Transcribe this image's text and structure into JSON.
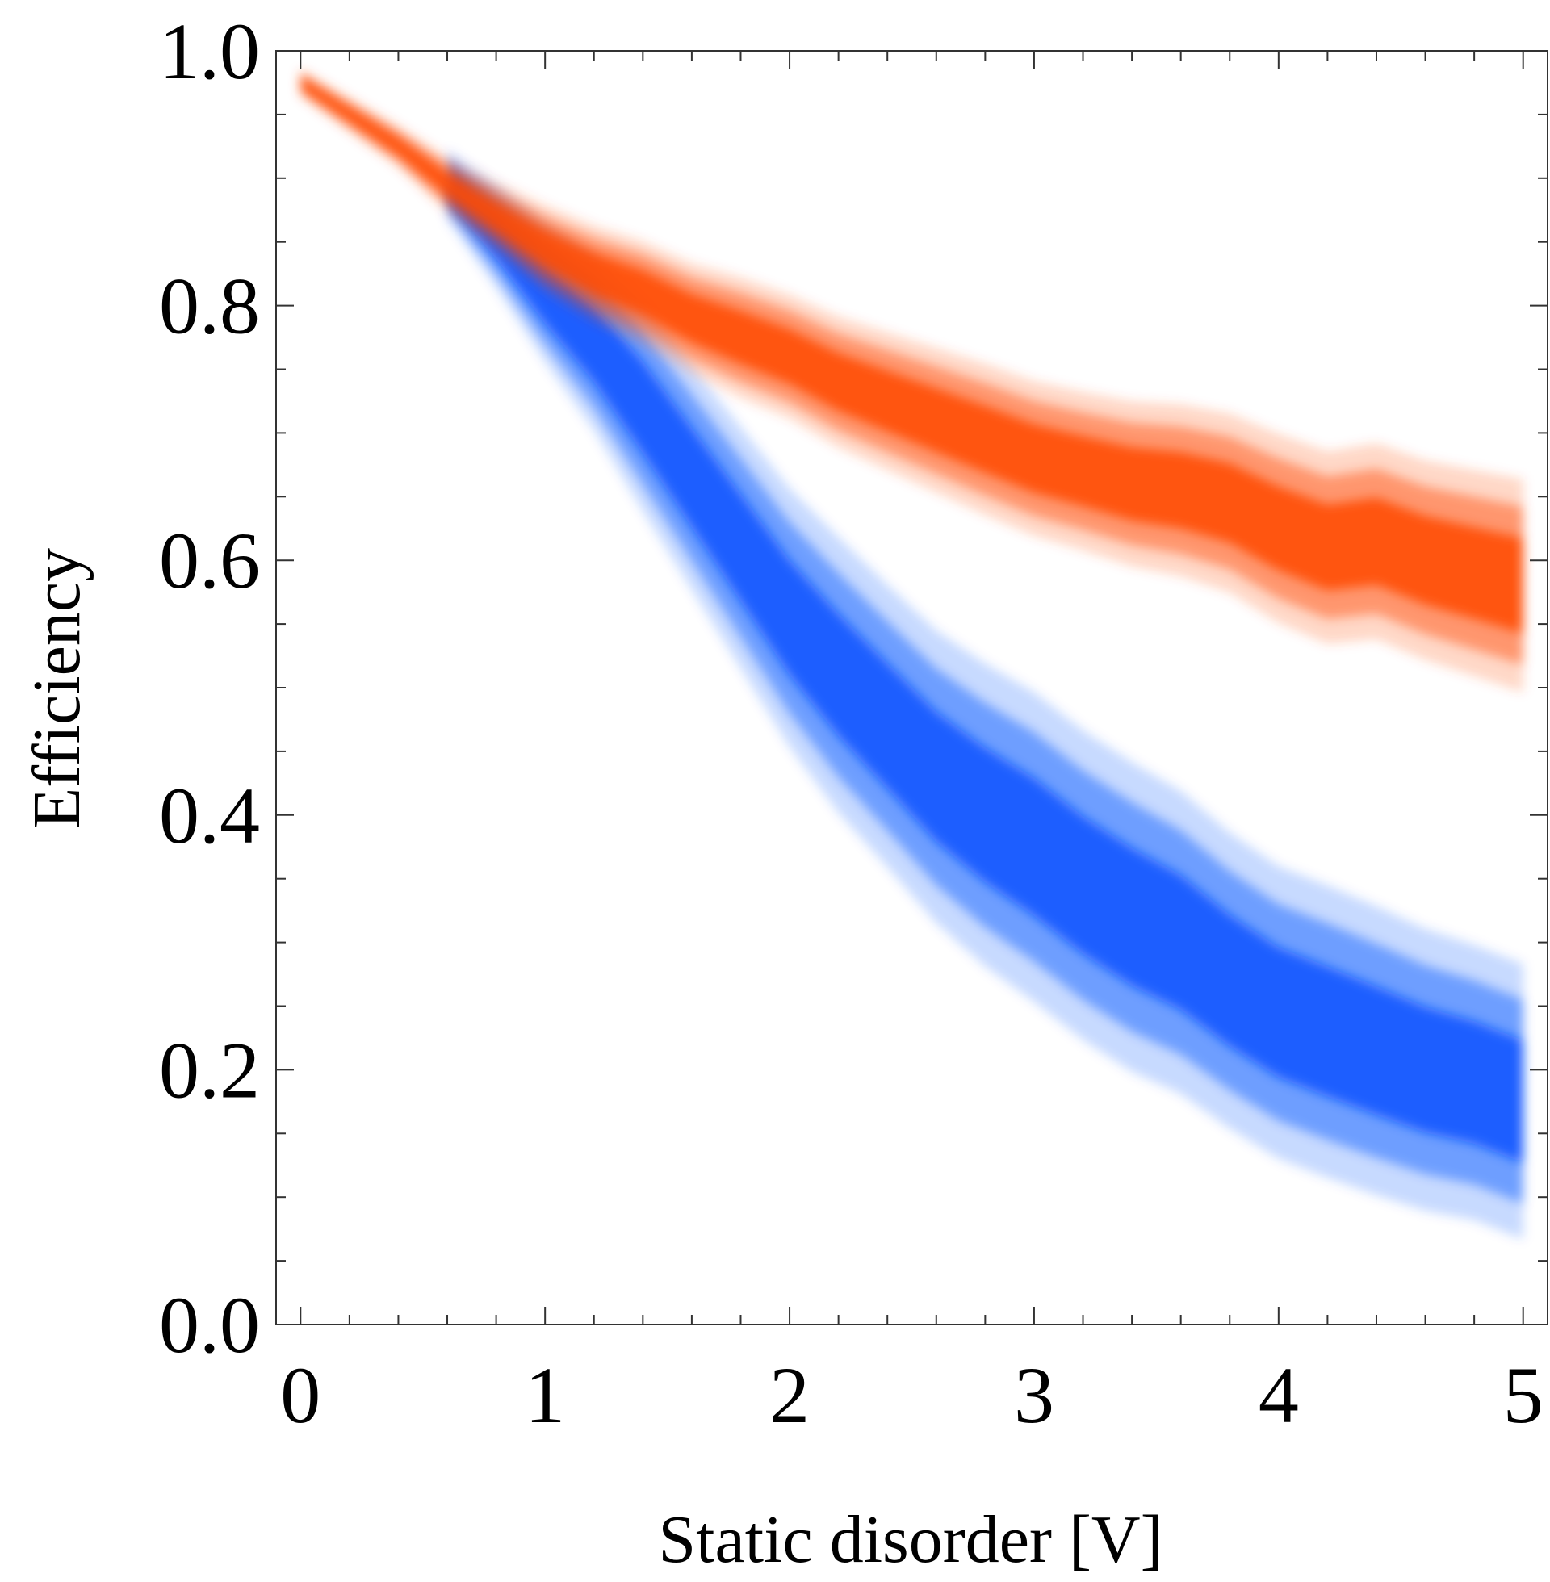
{
  "chart_data": {
    "type": "area",
    "title": "",
    "xlabel": "Static disorder [V]",
    "ylabel": "Efficiency",
    "xlim": [
      -0.1,
      5.1
    ],
    "ylim": [
      0.0,
      1.0
    ],
    "x_major_ticks": [
      0,
      1,
      2,
      3,
      4,
      5
    ],
    "x_tick_labels": [
      "0",
      "1",
      "2",
      "3",
      "4",
      "5"
    ],
    "x_minor_step": 0.2,
    "y_major_ticks": [
      0.0,
      0.2,
      0.4,
      0.6,
      0.8,
      1.0
    ],
    "y_tick_labels": [
      "0.0",
      "0.2",
      "0.4",
      "0.6",
      "0.8",
      "1.0"
    ],
    "y_minor_step": 0.05,
    "grid": false,
    "legend": "none",
    "series": [
      {
        "name": "orange",
        "color": "#ff4a00",
        "x": [
          0.0,
          0.2,
          0.4,
          0.6,
          0.8,
          1.0,
          1.2,
          1.4,
          1.6,
          1.8,
          2.0,
          2.2,
          2.4,
          2.6,
          2.8,
          3.0,
          3.2,
          3.4,
          3.6,
          3.8,
          4.0,
          4.2,
          4.4,
          4.6,
          4.8,
          5.0
        ],
        "center": [
          0.975,
          0.95,
          0.925,
          0.895,
          0.87,
          0.845,
          0.825,
          0.81,
          0.79,
          0.775,
          0.76,
          0.74,
          0.725,
          0.71,
          0.695,
          0.68,
          0.67,
          0.66,
          0.655,
          0.645,
          0.625,
          0.61,
          0.615,
          0.6,
          0.59,
          0.58
        ],
        "halfwidth": [
          0.008,
          0.01,
          0.012,
          0.016,
          0.02,
          0.025,
          0.028,
          0.03,
          0.032,
          0.035,
          0.036,
          0.038,
          0.04,
          0.042,
          0.044,
          0.045,
          0.046,
          0.048,
          0.05,
          0.052,
          0.055,
          0.056,
          0.057,
          0.058,
          0.06,
          0.062
        ]
      },
      {
        "name": "blue",
        "color": "#0a55ff",
        "x": [
          0.6,
          0.8,
          1.0,
          1.2,
          1.4,
          1.6,
          1.8,
          2.0,
          2.2,
          2.4,
          2.6,
          2.8,
          3.0,
          3.2,
          3.4,
          3.6,
          3.8,
          4.0,
          4.2,
          4.4,
          4.6,
          4.8,
          5.0
        ],
        "center": [
          0.895,
          0.855,
          0.81,
          0.77,
          0.72,
          0.665,
          0.61,
          0.555,
          0.51,
          0.47,
          0.43,
          0.4,
          0.375,
          0.345,
          0.32,
          0.3,
          0.27,
          0.245,
          0.23,
          0.215,
          0.2,
          0.19,
          0.175
        ],
        "halfwidth": [
          0.02,
          0.03,
          0.04,
          0.05,
          0.06,
          0.065,
          0.07,
          0.075,
          0.08,
          0.082,
          0.085,
          0.088,
          0.09,
          0.09,
          0.09,
          0.088,
          0.086,
          0.085,
          0.085,
          0.084,
          0.082,
          0.08,
          0.08
        ]
      }
    ]
  }
}
